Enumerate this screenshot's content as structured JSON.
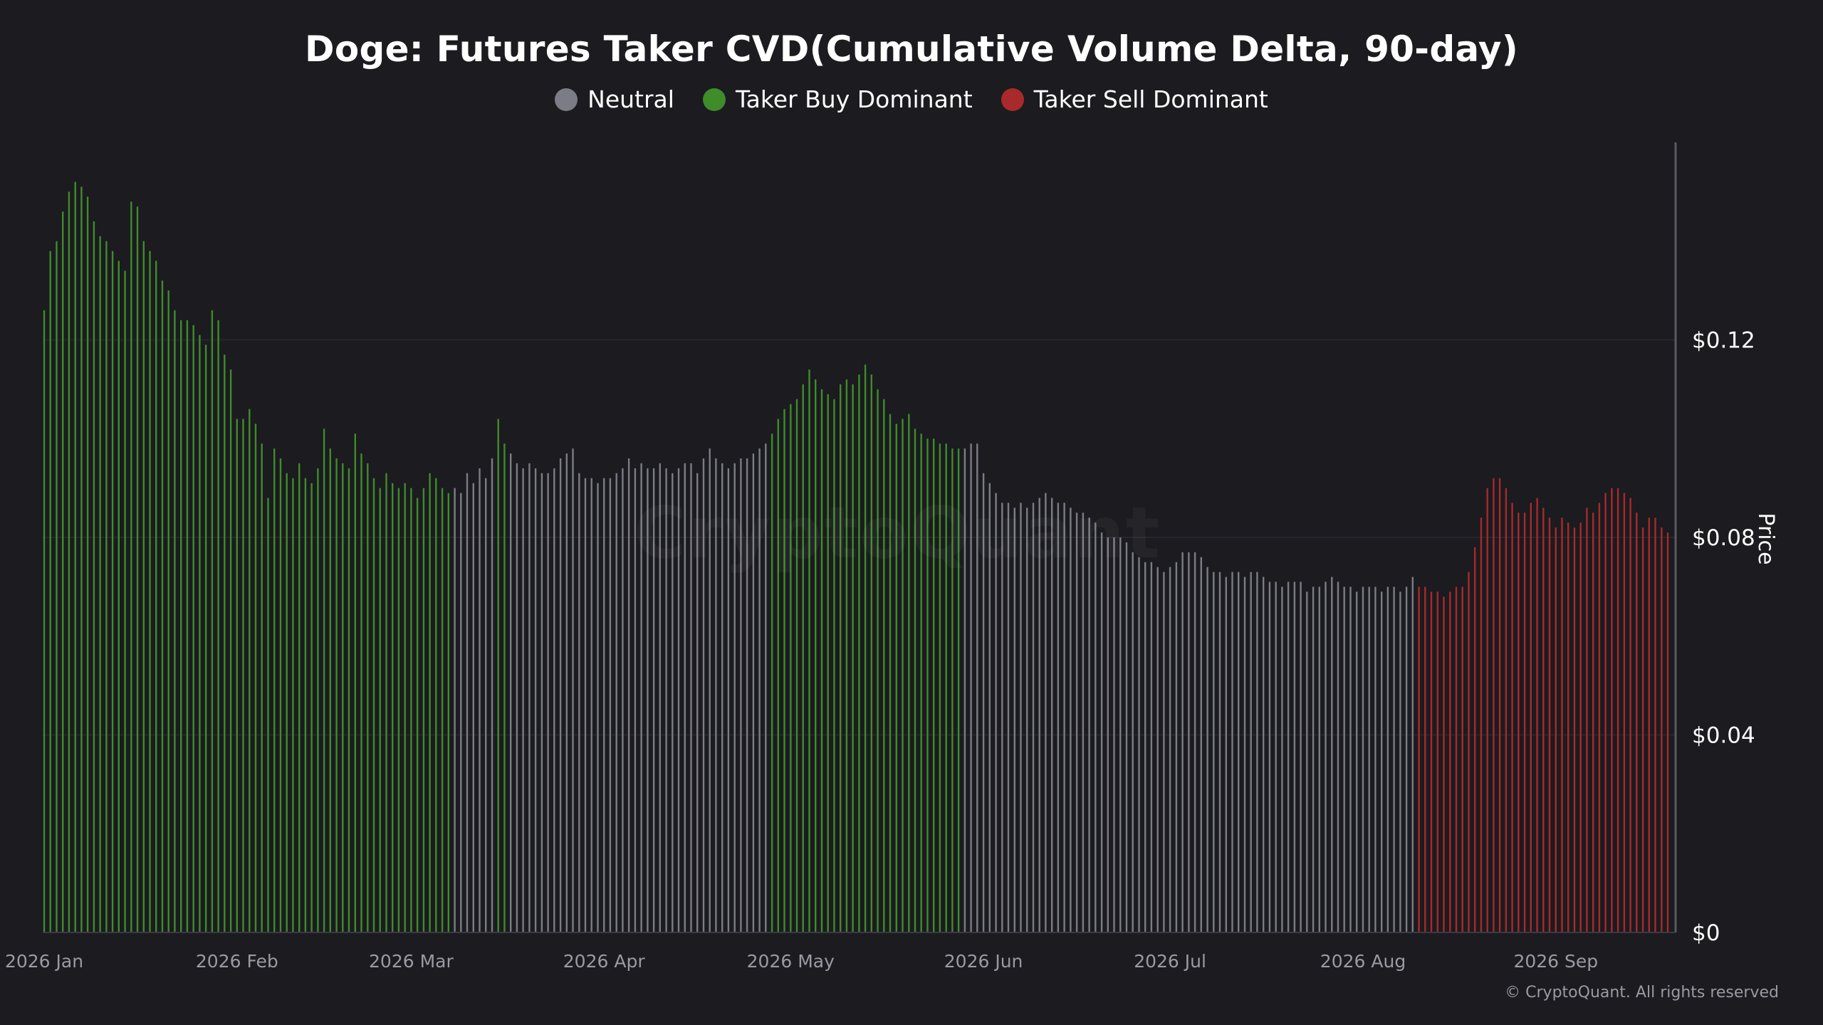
{
  "title": "Doge: Futures Taker CVD(Cumulative Volume Delta, 90-day)",
  "legend": [
    {
      "label": "Neutral",
      "color": "#7c7c86"
    },
    {
      "label": "Taker Buy Dominant",
      "color": "#3f8c2a"
    },
    {
      "label": "Taker Sell Dominant",
      "color": "#a82a2a"
    }
  ],
  "watermark": "CryptoQuant",
  "copyright": "© CryptoQuant. All rights reserved",
  "chart_data": {
    "type": "bar",
    "x_start": "2026-01-01",
    "ylabel": "Price",
    "ylim": [
      0,
      0.16
    ],
    "y_ticks": [
      {
        "value": 0,
        "label": "$0"
      },
      {
        "value": 0.04,
        "label": "$0.04"
      },
      {
        "value": 0.08,
        "label": "$0.08"
      },
      {
        "value": 0.12,
        "label": "$0.12"
      }
    ],
    "x_ticks": [
      {
        "date": "2026-01-01",
        "label": "2026 Jan"
      },
      {
        "date": "2026-02-01",
        "label": "2026 Feb"
      },
      {
        "date": "2026-03-01",
        "label": "2026 Mar"
      },
      {
        "date": "2026-04-01",
        "label": "2026 Apr"
      },
      {
        "date": "2026-05-01",
        "label": "2026 May"
      },
      {
        "date": "2026-06-01",
        "label": "2026 Jun"
      },
      {
        "date": "2026-07-01",
        "label": "2026 Jul"
      },
      {
        "date": "2026-08-01",
        "label": "2026 Aug"
      },
      {
        "date": "2026-09-01",
        "label": "2026 Sep"
      }
    ],
    "grid": true,
    "colors": {
      "buy": "#3f8c2a",
      "neutral": "#7c7c86",
      "sell": "#a82a2a"
    },
    "segments": [
      {
        "class": "buy",
        "values": [
          0.126,
          0.138,
          0.14,
          0.146,
          0.15,
          0.152,
          0.151,
          0.149,
          0.144,
          0.141,
          0.14,
          0.138,
          0.136,
          0.134,
          0.148,
          0.147,
          0.14,
          0.138,
          0.136,
          0.132,
          0.13,
          0.126,
          0.124,
          0.124,
          0.123,
          0.121,
          0.119,
          0.126,
          0.124,
          0.117,
          0.114,
          0.104,
          0.104,
          0.106,
          0.103,
          0.099,
          0.088,
          0.098,
          0.096,
          0.093,
          0.092,
          0.095,
          0.092,
          0.091,
          0.094,
          0.102,
          0.098,
          0.096,
          0.095,
          0.094,
          0.101,
          0.097,
          0.095,
          0.092,
          0.09,
          0.093,
          0.091,
          0.09,
          0.091,
          0.09,
          0.088,
          0.09,
          0.093,
          0.092,
          0.09,
          0.089
        ]
      },
      {
        "class": "neutral",
        "values": [
          0.09,
          0.089,
          0.093,
          0.091,
          0.094,
          0.092,
          0.096
        ]
      },
      {
        "class": "buy",
        "values": [
          0.104,
          0.099
        ]
      },
      {
        "class": "neutral",
        "values": [
          0.097,
          0.095,
          0.094,
          0.095,
          0.094,
          0.093,
          0.093,
          0.094,
          0.096,
          0.097,
          0.098,
          0.093,
          0.092,
          0.092,
          0.091,
          0.092,
          0.092,
          0.093,
          0.094,
          0.096,
          0.094,
          0.095,
          0.094,
          0.094,
          0.095,
          0.094,
          0.093,
          0.094,
          0.095,
          0.095,
          0.093,
          0.096,
          0.098,
          0.096,
          0.095,
          0.094,
          0.095,
          0.096,
          0.096,
          0.097,
          0.098,
          0.099
        ]
      },
      {
        "class": "buy",
        "values": [
          0.101,
          0.104,
          0.106,
          0.107,
          0.108,
          0.111,
          0.114,
          0.112,
          0.11,
          0.109,
          0.108,
          0.111,
          0.112,
          0.111,
          0.113,
          0.115,
          0.113,
          0.11,
          0.108,
          0.105,
          0.103,
          0.104,
          0.105,
          0.102,
          0.101,
          0.1,
          0.1,
          0.099,
          0.099,
          0.098,
          0.098
        ]
      },
      {
        "class": "neutral",
        "values": [
          0.098,
          0.099,
          0.099,
          0.093,
          0.091,
          0.089,
          0.087,
          0.087,
          0.086,
          0.087,
          0.086,
          0.087,
          0.088,
          0.089,
          0.088,
          0.087,
          0.087,
          0.086,
          0.085,
          0.085,
          0.084,
          0.083,
          0.081,
          0.08,
          0.08,
          0.08,
          0.079,
          0.077,
          0.076,
          0.075,
          0.075,
          0.074,
          0.073,
          0.074,
          0.075,
          0.077,
          0.077,
          0.077,
          0.076,
          0.074,
          0.073,
          0.073,
          0.072,
          0.073,
          0.073,
          0.072,
          0.073,
          0.073,
          0.072,
          0.071,
          0.071,
          0.07,
          0.071,
          0.071,
          0.071,
          0.069,
          0.07,
          0.07,
          0.071,
          0.072,
          0.071,
          0.07,
          0.07,
          0.069,
          0.07,
          0.07,
          0.07,
          0.069,
          0.07,
          0.07,
          0.069,
          0.07,
          0.072
        ]
      },
      {
        "class": "sell",
        "values": [
          0.07,
          0.07,
          0.069,
          0.069,
          0.068,
          0.069,
          0.07,
          0.07,
          0.073,
          0.078,
          0.084,
          0.09,
          0.092,
          0.092,
          0.09,
          0.087,
          0.085,
          0.085,
          0.087,
          0.088,
          0.086,
          0.084,
          0.082,
          0.084,
          0.083,
          0.082,
          0.083,
          0.086,
          0.085,
          0.087,
          0.089,
          0.09,
          0.09,
          0.089,
          0.088,
          0.085,
          0.082,
          0.084,
          0.084,
          0.082,
          0.081
        ]
      }
    ]
  }
}
